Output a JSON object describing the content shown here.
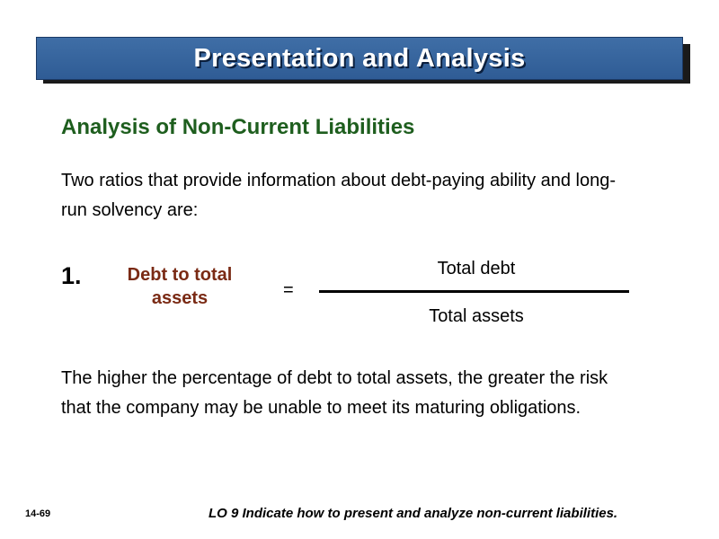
{
  "header": {
    "title": "Presentation and Analysis"
  },
  "section": {
    "subtitle": "Analysis of Non-Current Liabilities"
  },
  "intro_text": "Two ratios that provide information about debt-paying ability and long-run solvency are:",
  "ratio": {
    "number": "1.",
    "name": "Debt to total assets",
    "equals": "=",
    "numerator": "Total debt",
    "denominator": "Total assets"
  },
  "conclusion_text": "The higher the percentage of debt to total assets, the greater the risk that the company may be unable to meet its maturing obligations.",
  "footer": {
    "page": "14-69",
    "objective": "LO 9  Indicate how to present and analyze non-current liabilities."
  }
}
